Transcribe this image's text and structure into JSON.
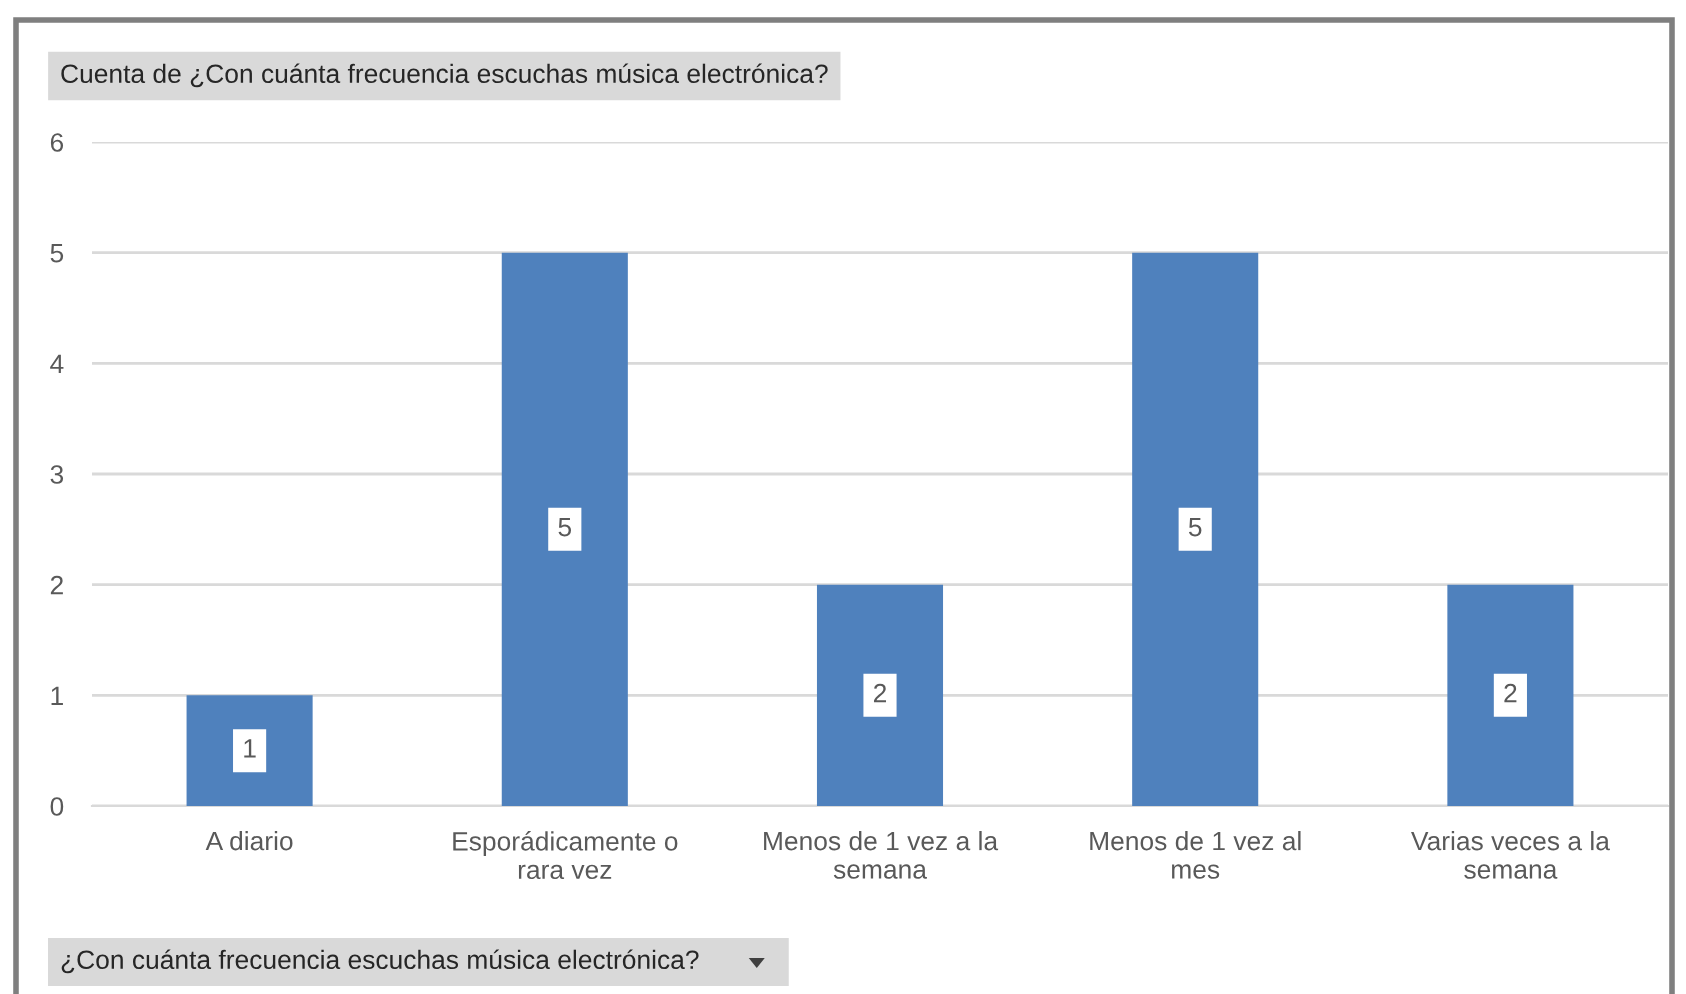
{
  "chart_data": {
    "type": "bar",
    "title": "Cuenta de ¿Con cuánta frecuencia escuchas música electrónica?",
    "xlabel": "¿Con cuánta frecuencia escuchas música electrónica?",
    "categories": [
      "A diario",
      "Esporádicamente o rara vez",
      "Menos de 1 vez a la semana",
      "Menos de 1 vez al mes",
      "Varias veces a la semana"
    ],
    "values": [
      1,
      5,
      2,
      5,
      2
    ],
    "color": "#4f81bd",
    "ylim": [
      0,
      6
    ],
    "yticks": [
      0,
      1,
      2,
      3,
      4,
      5,
      6
    ],
    "grid": "y",
    "data_labels": true
  }
}
